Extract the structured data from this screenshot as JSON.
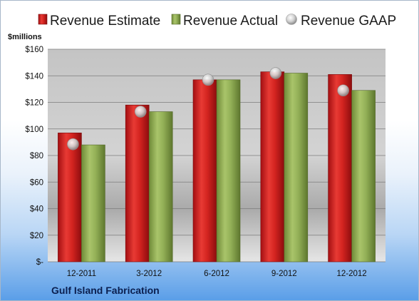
{
  "company": "Gulf Island Fabrication",
  "chart_data": {
    "type": "bar",
    "ylabel": "$millions",
    "categories": [
      "12-2011",
      "3-2012",
      "6-2012",
      "9-2012",
      "12-2012"
    ],
    "series": [
      {
        "name": "Revenue Estimate",
        "kind": "bar",
        "color": "#cc1f1f",
        "values": [
          97,
          118,
          137,
          143,
          141
        ]
      },
      {
        "name": "Revenue Actual",
        "kind": "bar",
        "color": "#8faa52",
        "values": [
          88,
          113,
          137,
          142,
          129
        ]
      },
      {
        "name": "Revenue GAAP",
        "kind": "marker",
        "color": "#c9c9c9",
        "values": [
          88.5,
          113,
          137,
          142,
          129
        ]
      }
    ],
    "ylim": [
      0,
      160
    ],
    "yticks": [
      {
        "value": 0,
        "label": "$-"
      },
      {
        "value": 20,
        "label": "$20"
      },
      {
        "value": 40,
        "label": "$40"
      },
      {
        "value": 60,
        "label": "$60"
      },
      {
        "value": 80,
        "label": "$80"
      },
      {
        "value": 100,
        "label": "$100"
      },
      {
        "value": 120,
        "label": "$120"
      },
      {
        "value": 140,
        "label": "$140"
      },
      {
        "value": 160,
        "label": "$160"
      }
    ],
    "grid": true,
    "legend": "top"
  }
}
